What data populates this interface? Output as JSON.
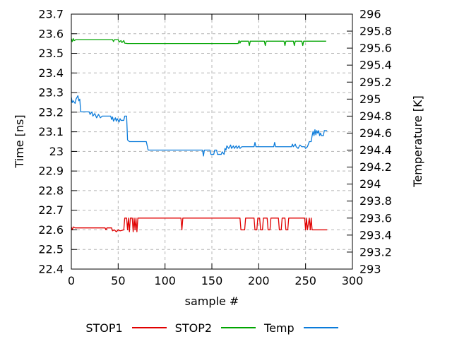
{
  "figure": {
    "xlabel": "sample #",
    "ylabel_left": "Time [ns]",
    "ylabel_right": "Temperature [K]"
  },
  "chart_data": {
    "type": "line",
    "title": "",
    "xlabel": "sample #",
    "ylabel_left": "Time [ns]",
    "ylabel_right": "Temperature [K]",
    "x_range": [
      0,
      300
    ],
    "y_left_range": [
      22.4,
      23.7
    ],
    "y_right_range": [
      293,
      296
    ],
    "x_ticks": [
      0,
      50,
      100,
      150,
      200,
      250,
      300
    ],
    "y_left_ticks": [
      22.4,
      22.5,
      22.6,
      22.7,
      22.8,
      22.9,
      23,
      23.1,
      23.2,
      23.3,
      23.4,
      23.5,
      23.6,
      23.7
    ],
    "y_right_ticks": [
      293,
      293.2,
      293.4,
      293.6,
      293.8,
      294,
      294.2,
      294.4,
      294.6,
      294.8,
      295,
      295.2,
      295.4,
      295.6,
      295.8,
      296
    ],
    "grid": true,
    "legend_position": "bottom-center",
    "colors": {
      "background": "#ffffff",
      "border": "#000000",
      "grid": "#b4b4b4",
      "text": "#000000"
    },
    "series": [
      {
        "name": "STOP1",
        "axis": "left",
        "color": "#e00000",
        "points": [
          [
            0,
            22.615
          ],
          [
            1,
            22.6
          ],
          [
            2,
            22.615
          ],
          [
            4,
            22.61
          ],
          [
            36,
            22.61
          ],
          [
            37,
            22.6
          ],
          [
            38,
            22.61
          ],
          [
            43,
            22.61
          ],
          [
            44,
            22.595
          ],
          [
            46,
            22.6
          ],
          [
            48,
            22.59
          ],
          [
            50,
            22.6
          ],
          [
            52,
            22.595
          ],
          [
            56,
            22.6
          ],
          [
            57,
            22.66
          ],
          [
            59,
            22.66
          ],
          [
            60,
            22.6
          ],
          [
            61,
            22.66
          ],
          [
            62,
            22.59
          ],
          [
            63,
            22.66
          ],
          [
            65,
            22.66
          ],
          [
            66,
            22.59
          ],
          [
            67,
            22.66
          ],
          [
            68,
            22.6
          ],
          [
            69,
            22.66
          ],
          [
            70,
            22.59
          ],
          [
            71,
            22.66
          ],
          [
            117,
            22.66
          ],
          [
            118,
            22.6
          ],
          [
            119,
            22.66
          ],
          [
            180,
            22.66
          ],
          [
            181,
            22.6
          ],
          [
            185,
            22.6
          ],
          [
            186,
            22.66
          ],
          [
            195,
            22.66
          ],
          [
            196,
            22.6
          ],
          [
            198,
            22.6
          ],
          [
            199,
            22.66
          ],
          [
            201,
            22.66
          ],
          [
            202,
            22.6
          ],
          [
            204,
            22.6
          ],
          [
            205,
            22.66
          ],
          [
            209,
            22.66
          ],
          [
            210,
            22.6
          ],
          [
            212,
            22.6
          ],
          [
            213,
            22.66
          ],
          [
            221,
            22.66
          ],
          [
            222,
            22.6
          ],
          [
            224,
            22.6
          ],
          [
            225,
            22.66
          ],
          [
            228,
            22.66
          ],
          [
            229,
            22.6
          ],
          [
            231,
            22.6
          ],
          [
            232,
            22.66
          ],
          [
            249,
            22.66
          ],
          [
            250,
            22.6
          ],
          [
            251,
            22.66
          ],
          [
            252,
            22.6
          ],
          [
            254,
            22.66
          ],
          [
            255,
            22.6
          ],
          [
            256,
            22.66
          ],
          [
            257,
            22.6
          ],
          [
            273,
            22.6
          ]
        ]
      },
      {
        "name": "STOP2",
        "axis": "left",
        "color": "#00a400",
        "points": [
          [
            0,
            23.575
          ],
          [
            1,
            23.56
          ],
          [
            2,
            23.575
          ],
          [
            3,
            23.565
          ],
          [
            5,
            23.57
          ],
          [
            44,
            23.57
          ],
          [
            45,
            23.56
          ],
          [
            46,
            23.57
          ],
          [
            50,
            23.57
          ],
          [
            51,
            23.558
          ],
          [
            53,
            23.565
          ],
          [
            54,
            23.555
          ],
          [
            56,
            23.565
          ],
          [
            57,
            23.552
          ],
          [
            60,
            23.55
          ],
          [
            178,
            23.55
          ],
          [
            179,
            23.565
          ],
          [
            180,
            23.552
          ],
          [
            181,
            23.562
          ],
          [
            189,
            23.562
          ],
          [
            190,
            23.54
          ],
          [
            191,
            23.562
          ],
          [
            206,
            23.562
          ],
          [
            207,
            23.54
          ],
          [
            208,
            23.562
          ],
          [
            227,
            23.562
          ],
          [
            228,
            23.54
          ],
          [
            229,
            23.562
          ],
          [
            237,
            23.562
          ],
          [
            238,
            23.54
          ],
          [
            239,
            23.562
          ],
          [
            246,
            23.562
          ],
          [
            247,
            23.54
          ],
          [
            248,
            23.562
          ],
          [
            272,
            23.562
          ]
        ]
      },
      {
        "name": "Temp",
        "axis": "right",
        "color": "#0b7bda",
        "points": [
          [
            0,
            295.02
          ],
          [
            1,
            294.96
          ],
          [
            2,
            294.98
          ],
          [
            4,
            294.95
          ],
          [
            5,
            295.0
          ],
          [
            7,
            295.04
          ],
          [
            8,
            294.98
          ],
          [
            9,
            295.0
          ],
          [
            10,
            294.85
          ],
          [
            19,
            294.85
          ],
          [
            20,
            294.82
          ],
          [
            22,
            294.85
          ],
          [
            23,
            294.8
          ],
          [
            25,
            294.83
          ],
          [
            27,
            294.78
          ],
          [
            29,
            294.82
          ],
          [
            31,
            294.78
          ],
          [
            33,
            294.8
          ],
          [
            42,
            294.8
          ],
          [
            43,
            294.76
          ],
          [
            44,
            294.79
          ],
          [
            45,
            294.74
          ],
          [
            47,
            294.78
          ],
          [
            48,
            294.74
          ],
          [
            49,
            294.77
          ],
          [
            51,
            294.73
          ],
          [
            52,
            294.77
          ],
          [
            53,
            294.75
          ],
          [
            56,
            294.75
          ],
          [
            57,
            294.8
          ],
          [
            59,
            294.8
          ],
          [
            60,
            294.52
          ],
          [
            62,
            294.5
          ],
          [
            80,
            294.5
          ],
          [
            82,
            294.4
          ],
          [
            140,
            294.4
          ],
          [
            141,
            294.33
          ],
          [
            142,
            294.4
          ],
          [
            148,
            294.4
          ],
          [
            149,
            294.35
          ],
          [
            152,
            294.35
          ],
          [
            153,
            294.4
          ],
          [
            155,
            294.4
          ],
          [
            156,
            294.35
          ],
          [
            160,
            294.35
          ],
          [
            161,
            294.38
          ],
          [
            163,
            294.35
          ],
          [
            164,
            294.42
          ],
          [
            165,
            294.4
          ],
          [
            166,
            294.45
          ],
          [
            168,
            294.42
          ],
          [
            170,
            294.46
          ],
          [
            171,
            294.42
          ],
          [
            173,
            294.45
          ],
          [
            174,
            294.42
          ],
          [
            176,
            294.45
          ],
          [
            177,
            294.42
          ],
          [
            179,
            294.45
          ],
          [
            180,
            294.42
          ],
          [
            182,
            294.44
          ],
          [
            195,
            294.44
          ],
          [
            196,
            294.49
          ],
          [
            197,
            294.44
          ],
          [
            216,
            294.44
          ],
          [
            217,
            294.49
          ],
          [
            218,
            294.44
          ],
          [
            235,
            294.44
          ],
          [
            236,
            294.47
          ],
          [
            237,
            294.44
          ],
          [
            239,
            294.47
          ],
          [
            240,
            294.44
          ],
          [
            242,
            294.42
          ],
          [
            244,
            294.46
          ],
          [
            246,
            294.44
          ],
          [
            249,
            294.44
          ],
          [
            250,
            294.42
          ],
          [
            252,
            294.44
          ],
          [
            254,
            294.5
          ],
          [
            256,
            294.5
          ],
          [
            257,
            294.57
          ],
          [
            258,
            294.62
          ],
          [
            259,
            294.57
          ],
          [
            260,
            294.64
          ],
          [
            261,
            294.58
          ],
          [
            262,
            294.63
          ],
          [
            263,
            294.6
          ],
          [
            264,
            294.63
          ],
          [
            265,
            294.57
          ],
          [
            266,
            294.6
          ],
          [
            267,
            294.57
          ],
          [
            269,
            294.57
          ],
          [
            270,
            294.63
          ],
          [
            273,
            294.63
          ]
        ]
      }
    ]
  }
}
